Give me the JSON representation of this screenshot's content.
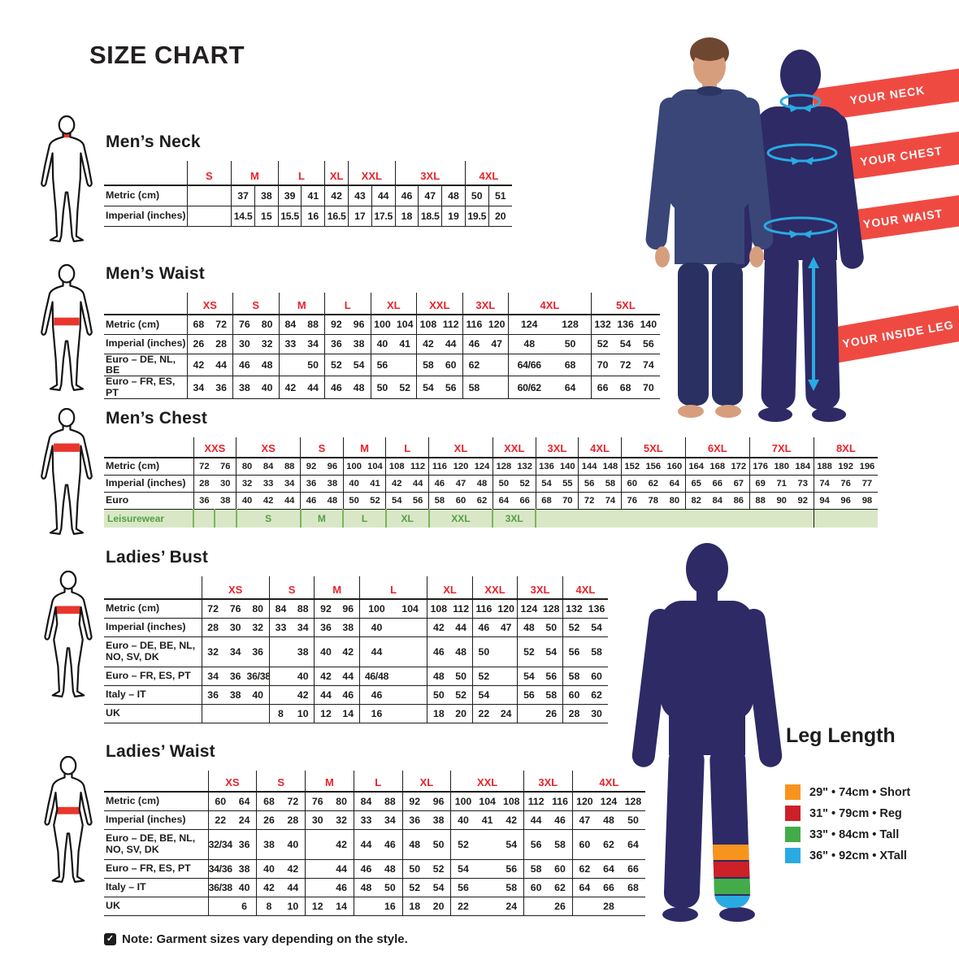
{
  "page": {
    "title": "SIZE CHART",
    "note": "Note: Garment sizes vary depending on the style."
  },
  "banners": {
    "neck": "YOUR NECK",
    "chest": "YOUR CHEST",
    "waist": "YOUR WAIST",
    "inside_leg": "YOUR INSIDE LEG"
  },
  "leg_length": {
    "title": "Leg Length",
    "items": [
      {
        "color": "#f7941e",
        "label": "29\" • 74cm • Short"
      },
      {
        "color": "#cb2127",
        "label": "31\" • 79cm • Reg"
      },
      {
        "color": "#43ac49",
        "label": "33\" • 84cm • Tall"
      },
      {
        "color": "#29abe2",
        "label": "36\" • 92cm • XTall"
      }
    ]
  },
  "tables": [
    {
      "id": "mens-neck",
      "title": "Men’s Neck",
      "sizes": [
        "S",
        "M",
        "L",
        "XL",
        "XXL",
        "3XL",
        "4XL"
      ],
      "spans": [
        1,
        2,
        2,
        1,
        2,
        3,
        2
      ],
      "rows": [
        {
          "label": "Metric (cm)",
          "cells": [
            [
              ""
            ],
            [
              "37",
              "38"
            ],
            [
              "39",
              "41"
            ],
            [
              "42"
            ],
            [
              "43",
              "44"
            ],
            [
              "46",
              "47",
              "48"
            ],
            [
              "50",
              "51"
            ]
          ]
        },
        {
          "label": "Imperial (inches)",
          "cells": [
            [
              ""
            ],
            [
              "14.5",
              "15"
            ],
            [
              "15.5",
              "16"
            ],
            [
              "16.5"
            ],
            [
              "17",
              "17.5"
            ],
            [
              "18",
              "18.5",
              "19"
            ],
            [
              "19.5",
              "20"
            ]
          ]
        }
      ]
    },
    {
      "id": "mens-waist",
      "title": "Men’s Waist",
      "sizes": [
        "XS",
        "S",
        "M",
        "L",
        "XL",
        "XXL",
        "3XL",
        "4XL",
        "5XL"
      ],
      "spans": [
        2,
        2,
        2,
        2,
        2,
        2,
        2,
        2,
        3
      ],
      "rows": [
        {
          "label": "Metric (cm)",
          "cells": [
            [
              "68",
              "72"
            ],
            [
              "76",
              "80"
            ],
            [
              "84",
              "88"
            ],
            [
              "92",
              "96"
            ],
            [
              "100",
              "104"
            ],
            [
              "108",
              "112"
            ],
            [
              "116",
              "120"
            ],
            [
              "124",
              "128"
            ],
            [
              "132",
              "136",
              "140"
            ]
          ]
        },
        {
          "label": "Imperial (inches)",
          "cells": [
            [
              "26",
              "28"
            ],
            [
              "30",
              "32"
            ],
            [
              "33",
              "34"
            ],
            [
              "36",
              "38"
            ],
            [
              "40",
              "41"
            ],
            [
              "42",
              "44"
            ],
            [
              "46",
              "47"
            ],
            [
              "48",
              "50"
            ],
            [
              "52",
              "54",
              "56"
            ]
          ]
        },
        {
          "label": "Euro – DE, NL, BE",
          "cells": [
            [
              "42",
              "44"
            ],
            [
              "46",
              "48"
            ],
            [
              "",
              "50"
            ],
            [
              "52",
              "54"
            ],
            [
              "56",
              ""
            ],
            [
              "58",
              "60"
            ],
            [
              "62",
              ""
            ],
            [
              "64/66",
              "68"
            ],
            [
              "70",
              "72",
              "74"
            ]
          ]
        },
        {
          "label": "Euro – FR, ES, PT",
          "cells": [
            [
              "34",
              "36"
            ],
            [
              "38",
              "40"
            ],
            [
              "42",
              "44"
            ],
            [
              "46",
              "48"
            ],
            [
              "50",
              "52"
            ],
            [
              "54",
              "56"
            ],
            [
              "58",
              ""
            ],
            [
              "60/62",
              "64"
            ],
            [
              "66",
              "68",
              "70"
            ]
          ]
        }
      ]
    },
    {
      "id": "mens-chest",
      "title": "Men’s Chest",
      "sizes": [
        "XXS",
        "XS",
        "S",
        "M",
        "L",
        "XL",
        "XXL",
        "3XL",
        "4XL",
        "5XL",
        "6XL",
        "7XL",
        "8XL"
      ],
      "spans": [
        2,
        3,
        2,
        2,
        2,
        3,
        2,
        2,
        2,
        3,
        3,
        3,
        3
      ],
      "rows": [
        {
          "label": "Metric (cm)",
          "cells": [
            [
              "72",
              "76"
            ],
            [
              "80",
              "84",
              "88"
            ],
            [
              "92",
              "96"
            ],
            [
              "100",
              "104"
            ],
            [
              "108",
              "112"
            ],
            [
              "116",
              "120",
              "124"
            ],
            [
              "128",
              "132"
            ],
            [
              "136",
              "140"
            ],
            [
              "144",
              "148"
            ],
            [
              "152",
              "156",
              "160"
            ],
            [
              "164",
              "168",
              "172"
            ],
            [
              "176",
              "180",
              "184"
            ],
            [
              "188",
              "192",
              "196"
            ]
          ]
        },
        {
          "label": "Imperial (inches)",
          "cells": [
            [
              "28",
              "30"
            ],
            [
              "32",
              "33",
              "34"
            ],
            [
              "36",
              "38"
            ],
            [
              "40",
              "41"
            ],
            [
              "42",
              "44"
            ],
            [
              "46",
              "47",
              "48"
            ],
            [
              "50",
              "52"
            ],
            [
              "54",
              "55"
            ],
            [
              "56",
              "58"
            ],
            [
              "60",
              "62",
              "64"
            ],
            [
              "65",
              "66",
              "67"
            ],
            [
              "69",
              "71",
              "73"
            ],
            [
              "74",
              "76",
              "77"
            ]
          ]
        },
        {
          "label": "Euro",
          "cells": [
            [
              "36",
              "38"
            ],
            [
              "40",
              "42",
              "44"
            ],
            [
              "46",
              "48"
            ],
            [
              "50",
              "52"
            ],
            [
              "54",
              "56"
            ],
            [
              "58",
              "60",
              "62"
            ],
            [
              "64",
              "66"
            ],
            [
              "68",
              "70"
            ],
            [
              "72",
              "74"
            ],
            [
              "76",
              "78",
              "80"
            ],
            [
              "82",
              "84",
              "86"
            ],
            [
              "88",
              "90",
              "92"
            ],
            [
              "94",
              "96",
              "98"
            ]
          ]
        }
      ],
      "footer": {
        "label": "Leisurewear",
        "cells": [
          {
            "t": "",
            "s": 1
          },
          {
            "t": "",
            "s": 1
          },
          {
            "t": "S",
            "s": 3
          },
          {
            "t": "M",
            "s": 2
          },
          {
            "t": "L",
            "s": 2
          },
          {
            "t": "XL",
            "s": 2
          },
          {
            "t": "XXL",
            "s": 3
          },
          {
            "t": "3XL",
            "s": 2
          },
          {
            "t": "",
            "s": 13
          },
          {
            "t": "",
            "s": 3
          }
        ]
      }
    },
    {
      "id": "ladies-bust",
      "title": "Ladies’ Bust",
      "sizes": [
        "XS",
        "S",
        "M",
        "L",
        "XL",
        "XXL",
        "3XL",
        "4XL"
      ],
      "spans": [
        3,
        2,
        2,
        2,
        2,
        2,
        2,
        2
      ],
      "rows": [
        {
          "label": "Metric (cm)",
          "cells": [
            [
              "72",
              "76",
              "80"
            ],
            [
              "84",
              "88"
            ],
            [
              "92",
              "96"
            ],
            [
              "100",
              "104"
            ],
            [
              "108",
              "112"
            ],
            [
              "116",
              "120"
            ],
            [
              "124",
              "128"
            ],
            [
              "132",
              "136"
            ]
          ]
        },
        {
          "label": "Imperial (inches)",
          "cells": [
            [
              "28",
              "30",
              "32"
            ],
            [
              "33",
              "34"
            ],
            [
              "36",
              "38"
            ],
            [
              "40",
              ""
            ],
            [
              "42",
              "44"
            ],
            [
              "46",
              "47"
            ],
            [
              "48",
              "50"
            ],
            [
              "52",
              "54"
            ]
          ]
        },
        {
          "label": "Euro –  DE, BE, NL, NO, SV, DK",
          "cells": [
            [
              "32",
              "34",
              "36"
            ],
            [
              "",
              "38"
            ],
            [
              "40",
              "42"
            ],
            [
              "44",
              ""
            ],
            [
              "46",
              "48"
            ],
            [
              "50",
              ""
            ],
            [
              "52",
              "54"
            ],
            [
              "56",
              "58"
            ]
          ]
        },
        {
          "label": "Euro – FR, ES, PT",
          "cells": [
            [
              "34",
              "36",
              "36/38"
            ],
            [
              "",
              "40"
            ],
            [
              "42",
              "44"
            ],
            [
              "46/48",
              ""
            ],
            [
              "48",
              "50"
            ],
            [
              "52",
              ""
            ],
            [
              "54",
              "56"
            ],
            [
              "58",
              "60"
            ]
          ]
        },
        {
          "label": "Italy – IT",
          "cells": [
            [
              "36",
              "38",
              "40"
            ],
            [
              "",
              "42"
            ],
            [
              "44",
              "46"
            ],
            [
              "46",
              ""
            ],
            [
              "50",
              "52"
            ],
            [
              "54",
              ""
            ],
            [
              "56",
              "58"
            ],
            [
              "60",
              "62"
            ]
          ]
        },
        {
          "label": "UK",
          "cells": [
            [
              "",
              "",
              ""
            ],
            [
              "8",
              "10"
            ],
            [
              "12",
              "14"
            ],
            [
              "16",
              ""
            ],
            [
              "18",
              "20"
            ],
            [
              "22",
              "24"
            ],
            [
              "",
              "26"
            ],
            [
              "28",
              "30"
            ]
          ]
        }
      ]
    },
    {
      "id": "ladies-waist",
      "title": "Ladies’ Waist",
      "sizes": [
        "XS",
        "S",
        "M",
        "L",
        "XL",
        "XXL",
        "3XL",
        "4XL"
      ],
      "spans": [
        2,
        2,
        2,
        2,
        2,
        3,
        2,
        3
      ],
      "rows": [
        {
          "label": "Metric (cm)",
          "cells": [
            [
              "60",
              "64"
            ],
            [
              "68",
              "72"
            ],
            [
              "76",
              "80"
            ],
            [
              "84",
              "88"
            ],
            [
              "92",
              "96"
            ],
            [
              "100",
              "104",
              "108"
            ],
            [
              "112",
              "116"
            ],
            [
              "120",
              "124",
              "128"
            ]
          ]
        },
        {
          "label": "Imperial (inches)",
          "cells": [
            [
              "22",
              "24"
            ],
            [
              "26",
              "28"
            ],
            [
              "30",
              "32"
            ],
            [
              "33",
              "34"
            ],
            [
              "36",
              "38"
            ],
            [
              "40",
              "41",
              "42"
            ],
            [
              "44",
              "46"
            ],
            [
              "47",
              "48",
              "50"
            ]
          ]
        },
        {
          "label": "Euro – DE, BE, NL, NO, SV, DK",
          "cells": [
            [
              "32/34",
              "36"
            ],
            [
              "38",
              "40"
            ],
            [
              "",
              "42"
            ],
            [
              "44",
              "46"
            ],
            [
              "48",
              "50"
            ],
            [
              "52",
              "",
              "54"
            ],
            [
              "56",
              "58"
            ],
            [
              "60",
              "62",
              "64"
            ]
          ]
        },
        {
          "label": "Euro – FR, ES, PT",
          "cells": [
            [
              "34/36",
              "38"
            ],
            [
              "40",
              "42"
            ],
            [
              "",
              "44"
            ],
            [
              "46",
              "48"
            ],
            [
              "50",
              "52"
            ],
            [
              "54",
              "",
              "56"
            ],
            [
              "58",
              "60"
            ],
            [
              "62",
              "64",
              "66"
            ]
          ]
        },
        {
          "label": "Italy – IT",
          "cells": [
            [
              "36/38",
              "40"
            ],
            [
              "42",
              "44"
            ],
            [
              "",
              "46"
            ],
            [
              "48",
              "50"
            ],
            [
              "52",
              "54"
            ],
            [
              "56",
              "",
              "58"
            ],
            [
              "60",
              "62"
            ],
            [
              "64",
              "66",
              "68"
            ]
          ]
        },
        {
          "label": "UK",
          "cells": [
            [
              "",
              "6"
            ],
            [
              "8",
              "10"
            ],
            [
              "12",
              "14"
            ],
            [
              "",
              "16"
            ],
            [
              "18",
              "20"
            ],
            [
              "22",
              "",
              "24"
            ],
            [
              "",
              "26"
            ],
            [
              "",
              "28",
              ""
            ]
          ]
        }
      ]
    }
  ]
}
